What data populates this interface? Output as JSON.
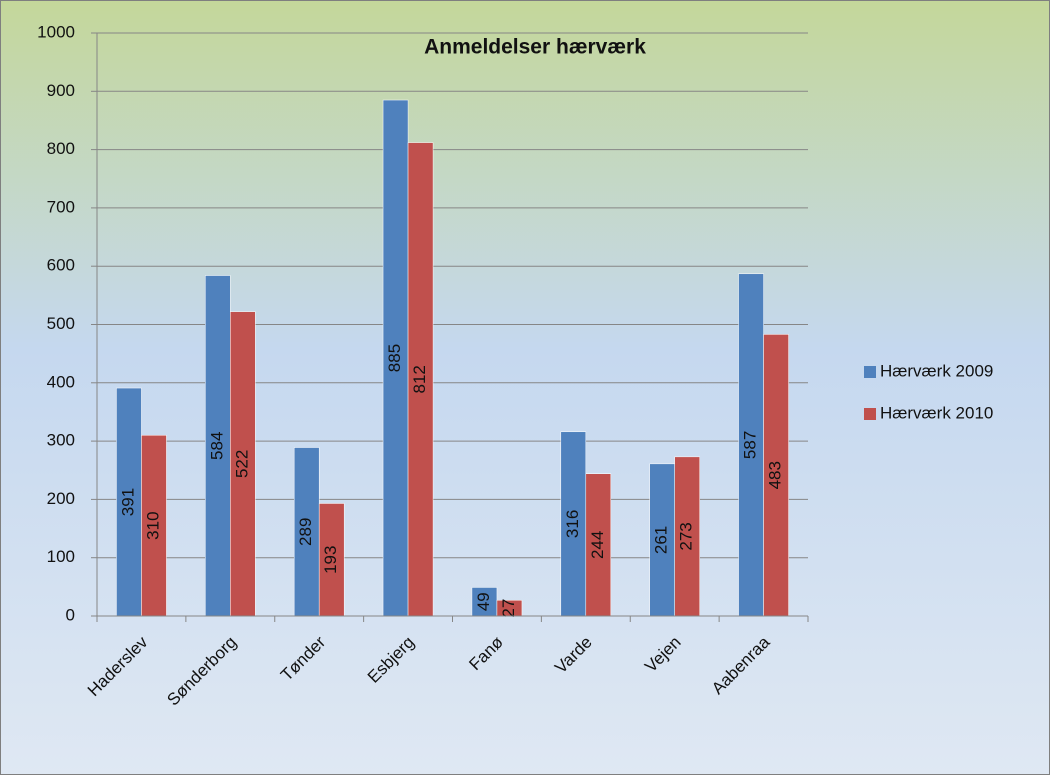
{
  "chart_data": {
    "type": "bar",
    "title": "Anmeldelser hærværk",
    "categories": [
      "Haderslev",
      "Sønderborg",
      "Tønder",
      "Esbjerg",
      "Fanø",
      "Varde",
      "Vejen",
      "Aabenraa"
    ],
    "series": [
      {
        "name": "Hærværk 2009",
        "color": "#4f81bd",
        "values": [
          391,
          584,
          289,
          885,
          49,
          316,
          261,
          587
        ]
      },
      {
        "name": "Hærværk 2010",
        "color": "#c0504d",
        "values": [
          310,
          522,
          193,
          812,
          27,
          244,
          273,
          483
        ]
      }
    ],
    "ylim": [
      0,
      1000
    ],
    "yticks": [
      0,
      100,
      200,
      300,
      400,
      500,
      600,
      700,
      800,
      900,
      1000
    ],
    "grid": true,
    "legend": "right"
  }
}
